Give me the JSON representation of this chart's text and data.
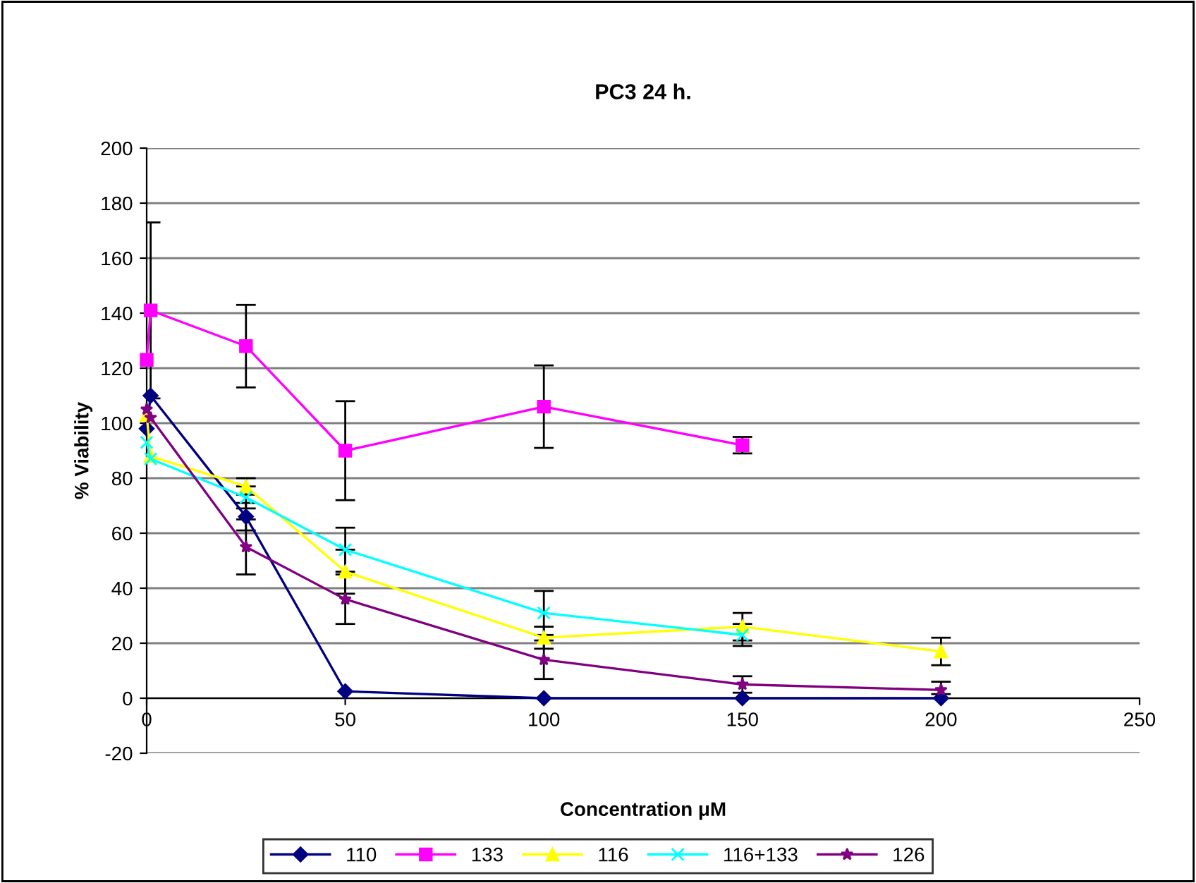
{
  "chart_data": {
    "type": "line",
    "title": "PC3 24 h.",
    "xlabel": "Concentration μM",
    "ylabel": "% Viability",
    "xlim": [
      0,
      250
    ],
    "xticks": [
      0,
      50,
      100,
      150,
      200,
      250
    ],
    "ylim": [
      -20,
      200
    ],
    "yticks": [
      -20,
      0,
      20,
      40,
      60,
      80,
      100,
      120,
      140,
      160,
      180,
      200
    ],
    "grid": "y",
    "legend": "bottom",
    "series": [
      {
        "name": "110",
        "color": "#000080",
        "marker": "diamond",
        "x": [
          0,
          1,
          25,
          50,
          100,
          150,
          200
        ],
        "values": [
          98,
          110,
          66,
          2.5,
          0,
          0,
          0
        ],
        "errors": [
          null,
          null,
          5,
          null,
          null,
          null,
          null
        ]
      },
      {
        "name": "133",
        "color": "#ff00ff",
        "marker": "square",
        "x": [
          0,
          1,
          25,
          50,
          100,
          150
        ],
        "values": [
          123,
          141,
          128,
          90,
          106,
          92
        ],
        "errors": [
          null,
          32,
          15,
          18,
          15,
          3
        ]
      },
      {
        "name": "116",
        "color": "#ffff00",
        "marker": "triangle",
        "x": [
          0,
          1,
          25,
          50,
          100,
          150,
          200
        ],
        "values": [
          103,
          88,
          77,
          46,
          22,
          26,
          17
        ],
        "errors": [
          null,
          null,
          3,
          8,
          4,
          5,
          5
        ]
      },
      {
        "name": "116+133",
        "color": "#00ffff",
        "marker": "cross",
        "x": [
          0,
          1,
          25,
          50,
          100,
          150
        ],
        "values": [
          93,
          87,
          73,
          54,
          31,
          23
        ],
        "errors": [
          null,
          null,
          4,
          8,
          8,
          4
        ]
      },
      {
        "name": "126",
        "color": "#800080",
        "marker": "star",
        "x": [
          0,
          1,
          25,
          50,
          100,
          150,
          200
        ],
        "values": [
          105,
          102,
          55,
          36,
          14,
          5,
          3
        ],
        "errors": [
          null,
          null,
          10,
          9,
          7,
          3,
          [
            1.5,
            6
          ]
        ]
      }
    ]
  }
}
